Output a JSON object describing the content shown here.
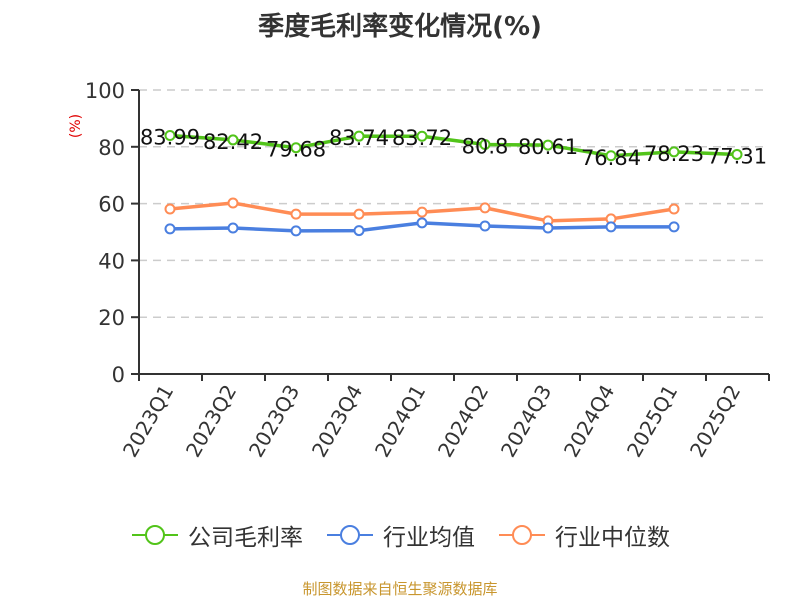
{
  "title": "季度毛利率变化情况(%)",
  "source": "制图数据来自恒生聚源数据库",
  "legend": [
    {
      "label": "公司毛利率",
      "color": "#52c41a"
    },
    {
      "label": "行业均值",
      "color": "#4a7fe0"
    },
    {
      "label": "行业中位数",
      "color": "#ff8c55"
    }
  ],
  "chart_data": {
    "type": "line",
    "title": "季度毛利率变化情况(%)",
    "xlabel": "",
    "ylabel": "(%)",
    "ylim": [
      0,
      100
    ],
    "yticks": [
      0,
      20,
      40,
      60,
      80,
      100
    ],
    "grid": true,
    "legend_position": "bottom",
    "categories": [
      "2023Q1",
      "2023Q2",
      "2023Q3",
      "2023Q4",
      "2024Q1",
      "2024Q2",
      "2024Q3",
      "2024Q4",
      "2025Q1",
      "2025Q2"
    ],
    "series": [
      {
        "name": "公司毛利率",
        "color": "#52c41a",
        "values": [
          83.99,
          82.42,
          79.68,
          83.74,
          83.72,
          80.8,
          80.61,
          76.84,
          78.23,
          77.31
        ],
        "labels": [
          "83.99",
          "82.42",
          "79.68",
          "83.74",
          "83.72",
          "80.8",
          "80.61",
          "76.84",
          "78.23",
          "77.31"
        ]
      },
      {
        "name": "行业均值",
        "color": "#4a7fe0",
        "values": [
          51.1,
          51.4,
          50.4,
          50.5,
          53.2,
          52.1,
          51.4,
          51.8,
          51.8,
          null
        ]
      },
      {
        "name": "行业中位数",
        "color": "#ff8c55",
        "values": [
          58.1,
          60.2,
          56.3,
          56.3,
          57.0,
          58.5,
          53.9,
          54.6,
          58.1,
          null
        ]
      }
    ]
  }
}
